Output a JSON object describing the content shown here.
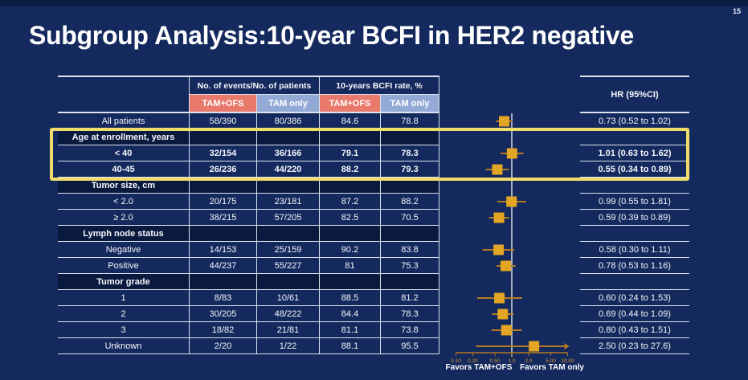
{
  "page_number": "15",
  "title": "Subgroup Analysis:10-year BCFI in HER2 negative",
  "table": {
    "col_groups": [
      {
        "label": "No. of events/No. of patients"
      },
      {
        "label": "10-years BCFI rate, %"
      }
    ],
    "sub_headers": [
      {
        "label": "TAM+OFS",
        "color": "#e8796b"
      },
      {
        "label": "TAM only",
        "color": "#94aad6"
      },
      {
        "label": "TAM+OFS",
        "color": "#e8796b"
      },
      {
        "label": "TAM only",
        "color": "#94aad6"
      }
    ],
    "rows": [
      {
        "type": "data",
        "label": "All patients",
        "ev1": "58/390",
        "ev2": "80/386",
        "rate1": "84.6",
        "rate2": "78.8",
        "hr_text": "0.73 (0.52 to 1.02)",
        "bold": false
      },
      {
        "type": "group",
        "label": "Age at enrollment, years"
      },
      {
        "type": "data",
        "label": "< 40",
        "ev1": "32/154",
        "ev2": "36/166",
        "rate1": "79.1",
        "rate2": "78.3",
        "hr_text": "1.01 (0.63 to 1.62)",
        "bold": true
      },
      {
        "type": "data",
        "label": "40-45",
        "ev1": "26/236",
        "ev2": "44/220",
        "rate1": "88.2",
        "rate2": "79.3",
        "hr_text": "0.55 (0.34 to 0.89)",
        "bold": true
      },
      {
        "type": "group",
        "label": "Tumor size, cm"
      },
      {
        "type": "data",
        "label": "< 2.0",
        "ev1": "20/175",
        "ev2": "23/181",
        "rate1": "87.2",
        "rate2": "88.2",
        "hr_text": "0.99 (0.55 to 1.81)",
        "bold": false
      },
      {
        "type": "data",
        "label": "≥ 2.0",
        "ev1": "38/215",
        "ev2": "57/205",
        "rate1": "82.5",
        "rate2": "70.5",
        "hr_text": "0.59 (0.39 to 0.89)",
        "bold": false
      },
      {
        "type": "group",
        "label": "Lymph node status"
      },
      {
        "type": "data",
        "label": "Negative",
        "ev1": "14/153",
        "ev2": "25/159",
        "rate1": "90.2",
        "rate2": "83.8",
        "hr_text": "0.58 (0.30 to 1.11)",
        "bold": false
      },
      {
        "type": "data",
        "label": "Positive",
        "ev1": "44/237",
        "ev2": "55/227",
        "rate1": "81",
        "rate2": "75.3",
        "hr_text": "0.78 (0.53 to 1.16)",
        "bold": false
      },
      {
        "type": "group",
        "label": "Tumor grade"
      },
      {
        "type": "data",
        "label": "1",
        "ev1": "8/83",
        "ev2": "10/61",
        "rate1": "88.5",
        "rate2": "81.2",
        "hr_text": "0.60 (0.24 to 1.53)",
        "bold": false
      },
      {
        "type": "data",
        "label": "2",
        "ev1": "30/205",
        "ev2": "48/222",
        "rate1": "84.4",
        "rate2": "78.3",
        "hr_text": "0.69 (0.44 to 1.09)",
        "bold": false
      },
      {
        "type": "data",
        "label": "3",
        "ev1": "18/82",
        "ev2": "21/81",
        "rate1": "81.1",
        "rate2": "73.8",
        "hr_text": "0.80 (0.43 to 1.51)",
        "bold": false
      },
      {
        "type": "data",
        "label": "Unknown",
        "ev1": "2/20",
        "ev2": "1/22",
        "rate1": "88.1",
        "rate2": "95.5",
        "hr_text": "2.50 (0.23 to 27.6)",
        "bold": false
      }
    ]
  },
  "hr_column": {
    "header": "HR (95%CI)"
  },
  "chart_data": {
    "type": "scatter",
    "subtype": "forest-plot",
    "title": "Subgroup Analysis:10-year BCFI in HER2 negative",
    "x_scale": "log10",
    "x_range": [
      0.1,
      10
    ],
    "reference_line": 1.0,
    "ticks": [
      {
        "value": 0.1,
        "label": "0.10"
      },
      {
        "value": 0.2,
        "label": "0.20"
      },
      {
        "value": 0.5,
        "label": "0.50"
      },
      {
        "value": 1.0,
        "label": "1.0"
      },
      {
        "value": 2.0,
        "label": "2.0"
      },
      {
        "value": 5.0,
        "label": "5.00"
      },
      {
        "value": 10.0,
        "label": "10.00"
      }
    ],
    "points": [
      {
        "row": 0,
        "label": "All patients",
        "hr": 0.73,
        "lo": 0.52,
        "hi": 1.02
      },
      {
        "row": 2,
        "label": "< 40",
        "hr": 1.01,
        "lo": 0.63,
        "hi": 1.62
      },
      {
        "row": 3,
        "label": "40-45",
        "hr": 0.55,
        "lo": 0.34,
        "hi": 0.89
      },
      {
        "row": 5,
        "label": "< 2.0",
        "hr": 0.99,
        "lo": 0.55,
        "hi": 1.81
      },
      {
        "row": 6,
        "label": "≥ 2.0",
        "hr": 0.59,
        "lo": 0.39,
        "hi": 0.89
      },
      {
        "row": 8,
        "label": "Negative",
        "hr": 0.58,
        "lo": 0.3,
        "hi": 1.11
      },
      {
        "row": 9,
        "label": "Positive",
        "hr": 0.78,
        "lo": 0.53,
        "hi": 1.16
      },
      {
        "row": 11,
        "label": "1",
        "hr": 0.6,
        "lo": 0.24,
        "hi": 1.53
      },
      {
        "row": 12,
        "label": "2",
        "hr": 0.69,
        "lo": 0.44,
        "hi": 1.09
      },
      {
        "row": 13,
        "label": "3",
        "hr": 0.8,
        "lo": 0.43,
        "hi": 1.51
      },
      {
        "row": 14,
        "label": "Unknown",
        "hr": 2.5,
        "lo": 0.23,
        "hi": 27.6
      }
    ],
    "favors_left": "Favors TAM+OFS",
    "favors_right": "Favors TAM only",
    "colors": {
      "marker": "#e2a524",
      "ci_line": "#b5791f",
      "axis": "#b5791f",
      "tick_label": "#d99b2b",
      "reference_line": "#c8cdd8",
      "highlight_border": "#f0dc6a"
    }
  },
  "highlighted_subgroup": [
    "Age at enrollment, years",
    "< 40",
    "40-45"
  ]
}
